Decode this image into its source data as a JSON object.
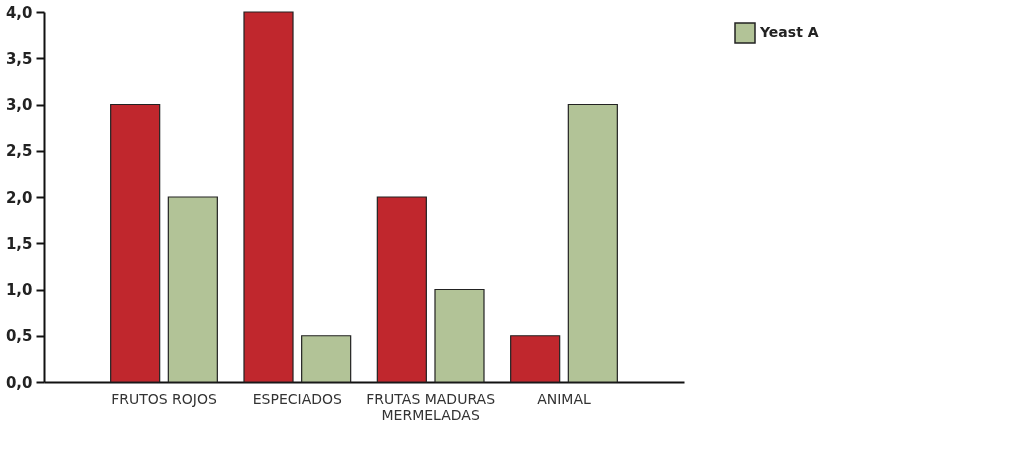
{
  "chart_data": {
    "type": "bar",
    "categories": [
      "FRUTOS ROJOS",
      "ESPECIADOS",
      "FRUTAS MADURAS\nMERMELADAS",
      "ANIMAL"
    ],
    "series": [
      {
        "color": "#c0272d",
        "values": [
          3,
          4,
          2,
          0.5
        ]
      },
      {
        "name": "Yeast A",
        "color": "#b2c397",
        "values": [
          2,
          0.5,
          1,
          3
        ]
      }
    ],
    "ylim": [
      0,
      4
    ],
    "yticks": [
      {
        "value": 0,
        "label": "0,0"
      },
      {
        "value": 0.5,
        "label": "0,5"
      },
      {
        "value": 1,
        "label": "1,0"
      },
      {
        "value": 1.5,
        "label": "1,5"
      },
      {
        "value": 2,
        "label": "2,0"
      },
      {
        "value": 2.5,
        "label": "2,5"
      },
      {
        "value": 3,
        "label": "3,0"
      },
      {
        "value": 3.5,
        "label": "3,5"
      },
      {
        "value": 4,
        "label": "4,0"
      }
    ],
    "grid": false,
    "legend": "right"
  }
}
